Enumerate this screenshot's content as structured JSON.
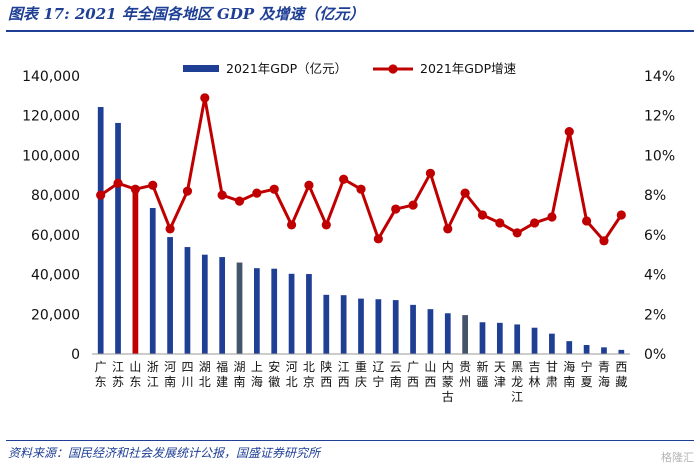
{
  "header": {
    "title": "图表 17: 2021 年全国各地区 GDP 及增速（亿元）"
  },
  "footer": {
    "source": "资料来源：国民经济和社会发展统计公报，国盛证券研究所",
    "watermark": "格隆汇"
  },
  "colors": {
    "bar": "#1f3f95",
    "bar_highlight_red": "#c00000",
    "bar_highlight_grey": "#44546a",
    "line": "#c00000",
    "title": "#1f3f95"
  },
  "chart_data": {
    "type": "bar",
    "categories": [
      "广东",
      "江苏",
      "山东",
      "浙江",
      "河南",
      "四川",
      "湖北",
      "福建",
      "湖南",
      "上海",
      "安徽",
      "河北",
      "北京",
      "陕西",
      "江西",
      "重庆",
      "辽宁",
      "云南",
      "广西",
      "山西",
      "内蒙古",
      "贵州",
      "新疆",
      "天津",
      "黑龙江",
      "吉林",
      "甘肃",
      "海南",
      "宁夏",
      "青海",
      "西藏"
    ],
    "series": [
      {
        "name": "2021年GDP（亿元）",
        "type": "bar",
        "axis": "left",
        "values": [
          124370,
          116364,
          83096,
          73516,
          58887,
          53851,
          50013,
          48810,
          46063,
          43215,
          42959,
          40391,
          40270,
          29801,
          29620,
          27894,
          27584,
          27147,
          24741,
          22590,
          20514,
          19586,
          15984,
          15695,
          14879,
          13236,
          10243,
          6475,
          4522,
          3347,
          2080
        ]
      },
      {
        "name": "2021年GDP增速",
        "type": "line",
        "axis": "right",
        "values": [
          8.0,
          8.6,
          8.3,
          8.5,
          6.3,
          8.2,
          12.9,
          8.0,
          7.7,
          8.1,
          8.3,
          6.5,
          8.5,
          6.5,
          8.8,
          8.3,
          5.8,
          7.3,
          7.5,
          9.1,
          6.3,
          8.1,
          7.0,
          6.6,
          6.1,
          6.6,
          6.9,
          11.2,
          6.7,
          5.7,
          7.0
        ]
      }
    ],
    "highlight": {
      "山东": "red",
      "湖南": "grey",
      "贵州": "grey"
    },
    "left_axis": {
      "ylim": [
        0,
        140000
      ],
      "ticks": [
        "0",
        "20,000",
        "40,000",
        "60,000",
        "80,000",
        "100,000",
        "120,000",
        "140,000"
      ]
    },
    "right_axis": {
      "ylim": [
        0,
        14
      ],
      "ticks": [
        "0%",
        "2%",
        "4%",
        "6%",
        "8%",
        "10%",
        "12%",
        "14%"
      ]
    },
    "legend": {
      "position": "top"
    }
  }
}
